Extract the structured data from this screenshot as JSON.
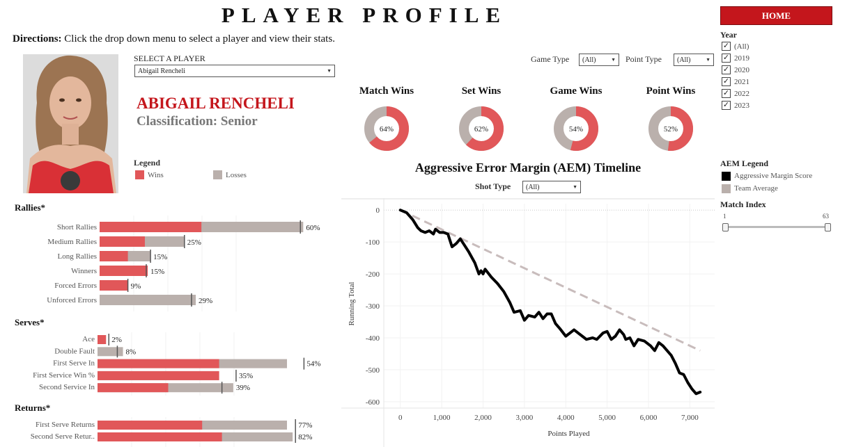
{
  "header": {
    "title": "PLAYER PROFILE",
    "home_label": "HOME"
  },
  "directions": {
    "bold": "Directions:",
    "text": " Click the drop down menu to select a player and view their stats."
  },
  "player": {
    "select_label": "SELECT A PLAYER",
    "selected": "Abigail Rencheli",
    "name": "ABIGAIL RENCHELI",
    "classification": "Classification: Senior"
  },
  "legend": {
    "title": "Legend",
    "wins": "Wins",
    "losses": "Losses"
  },
  "filters": {
    "game_type_label": "Game Type",
    "game_type_value": "(All)",
    "point_type_label": "Point Type",
    "point_type_value": "(All)",
    "shot_type_label": "Shot Type",
    "shot_type_value": "(All)"
  },
  "donuts": [
    {
      "title": "Match Wins",
      "value": 64,
      "label": "64%"
    },
    {
      "title": "Set Wins",
      "value": 62,
      "label": "62%"
    },
    {
      "title": "Game Wins",
      "value": 54,
      "label": "54%"
    },
    {
      "title": "Point Wins",
      "value": 52,
      "label": "52%"
    }
  ],
  "year_filter": {
    "title": "Year",
    "items": [
      {
        "label": "(All)",
        "checked": true
      },
      {
        "label": "2019",
        "checked": true
      },
      {
        "label": "2020",
        "checked": true
      },
      {
        "label": "2021",
        "checked": true
      },
      {
        "label": "2022",
        "checked": true
      },
      {
        "label": "2023",
        "checked": true
      }
    ]
  },
  "aem_legend": {
    "title": "AEM Legend",
    "score": "Aggressive Margin Score",
    "team": "Team Average"
  },
  "match_index": {
    "title": "Match Index",
    "min": "1",
    "max": "63"
  },
  "colors": {
    "win": "#e15759",
    "loss": "#bab0ac",
    "brand": "#c4161c",
    "line": "#000000",
    "team_line": "#c8bcbc"
  },
  "stats": {
    "rallies": {
      "title": "Rallies*",
      "rows": [
        {
          "label": "Short Rallies",
          "win": 36,
          "total": 72,
          "label_text": "60%",
          "marker": 71
        },
        {
          "label": "Medium Rallies",
          "win": 16,
          "total": 30,
          "label_text": "25%",
          "marker": 30
        },
        {
          "label": "Long Rallies",
          "win": 10,
          "total": 18,
          "label_text": "15%",
          "marker": 18
        },
        {
          "label": "Winners",
          "win": 17,
          "total": 17,
          "label_text": "15%",
          "marker": 16.5
        },
        {
          "label": "Forced Errors",
          "win": 10,
          "total": 10,
          "label_text": "9%",
          "marker": 10
        },
        {
          "label": "Unforced Errors",
          "win": 0,
          "total": 34,
          "label_text": "29%",
          "marker": 32.5
        }
      ]
    },
    "serves": {
      "title": "Serves*",
      "rows": [
        {
          "label": "Ace",
          "win": 3,
          "total": 3,
          "label_text": "2%",
          "marker": 4
        },
        {
          "label": "Double Fault",
          "win": 0,
          "total": 9,
          "label_text": "8%",
          "marker": 7
        },
        {
          "label": "First Serve In",
          "win": 43,
          "total": 67,
          "label_text": "54%",
          "marker": 73
        },
        {
          "label": "First Service Win %",
          "win": 43,
          "total": 43,
          "label_text": "35%",
          "marker": 49
        },
        {
          "label": "Second Service In",
          "win": 25,
          "total": 48,
          "label_text": "39%",
          "marker": 44
        }
      ]
    },
    "returns": {
      "title": "Returns*",
      "rows": [
        {
          "label": "First Serve Returns",
          "win": 37,
          "total": 67,
          "label_text": "77%",
          "marker": 70
        },
        {
          "label": "Second Serve Retur..",
          "win": 44,
          "total": 69,
          "label_text": "82%",
          "marker": 70
        }
      ]
    }
  },
  "chart_data": {
    "type": "line",
    "title": "Aggressive Error Margin (AEM) Timeline",
    "xlabel": "Points Played",
    "ylabel": "Running Total",
    "xlim": [
      -400,
      7600
    ],
    "ylim": [
      -620,
      20
    ],
    "x_ticks": [
      "0",
      "1,000",
      "2,000",
      "3,000",
      "4,000",
      "5,000",
      "6,000",
      "7,000"
    ],
    "y_ticks": [
      "0",
      "-100",
      "-200",
      "-300",
      "-400",
      "-500",
      "-600"
    ],
    "series": [
      {
        "name": "Aggressive Margin Score",
        "points": [
          [
            0,
            0
          ],
          [
            150,
            -8
          ],
          [
            300,
            -30
          ],
          [
            420,
            -55
          ],
          [
            500,
            -65
          ],
          [
            600,
            -70
          ],
          [
            700,
            -65
          ],
          [
            800,
            -75
          ],
          [
            850,
            -60
          ],
          [
            950,
            -70
          ],
          [
            1050,
            -70
          ],
          [
            1150,
            -75
          ],
          [
            1250,
            -115
          ],
          [
            1350,
            -105
          ],
          [
            1450,
            -90
          ],
          [
            1550,
            -110
          ],
          [
            1650,
            -130
          ],
          [
            1800,
            -165
          ],
          [
            1900,
            -200
          ],
          [
            1950,
            -190
          ],
          [
            2000,
            -200
          ],
          [
            2050,
            -185
          ],
          [
            2200,
            -210
          ],
          [
            2350,
            -230
          ],
          [
            2500,
            -255
          ],
          [
            2650,
            -290
          ],
          [
            2750,
            -320
          ],
          [
            2900,
            -315
          ],
          [
            3000,
            -345
          ],
          [
            3100,
            -330
          ],
          [
            3250,
            -335
          ],
          [
            3350,
            -320
          ],
          [
            3450,
            -340
          ],
          [
            3550,
            -325
          ],
          [
            3650,
            -325
          ],
          [
            3750,
            -355
          ],
          [
            3850,
            -370
          ],
          [
            4000,
            -395
          ],
          [
            4100,
            -385
          ],
          [
            4200,
            -375
          ],
          [
            4300,
            -385
          ],
          [
            4400,
            -395
          ],
          [
            4500,
            -405
          ],
          [
            4650,
            -400
          ],
          [
            4750,
            -405
          ],
          [
            4900,
            -385
          ],
          [
            5000,
            -380
          ],
          [
            5100,
            -405
          ],
          [
            5200,
            -395
          ],
          [
            5300,
            -375
          ],
          [
            5400,
            -390
          ],
          [
            5450,
            -405
          ],
          [
            5550,
            -400
          ],
          [
            5650,
            -425
          ],
          [
            5750,
            -405
          ],
          [
            5900,
            -410
          ],
          [
            6050,
            -425
          ],
          [
            6150,
            -440
          ],
          [
            6250,
            -415
          ],
          [
            6350,
            -425
          ],
          [
            6450,
            -440
          ],
          [
            6550,
            -455
          ],
          [
            6650,
            -480
          ],
          [
            6750,
            -510
          ],
          [
            6850,
            -515
          ],
          [
            6950,
            -540
          ],
          [
            7050,
            -560
          ],
          [
            7150,
            -575
          ],
          [
            7250,
            -570
          ]
        ]
      },
      {
        "name": "Team Average",
        "points": [
          [
            0,
            0
          ],
          [
            7250,
            -440
          ]
        ]
      }
    ]
  }
}
